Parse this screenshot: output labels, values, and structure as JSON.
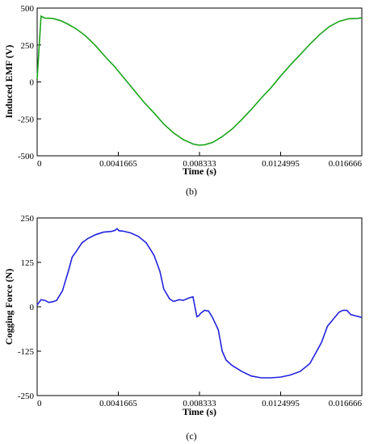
{
  "chart_data": [
    {
      "type": "line",
      "panel_label": "(b)",
      "xlabel": "Time (s)",
      "ylabel": "Induced EMF (V)",
      "xlim": [
        0,
        0.016666
      ],
      "ylim": [
        -500,
        500
      ],
      "xticks": [
        0,
        0.0041665,
        0.008333,
        0.0124995,
        0.016666
      ],
      "xtick_labels": [
        "0",
        "0.0041665",
        "0.008333",
        "0.0124995",
        "0.016666"
      ],
      "yticks": [
        500,
        250,
        0,
        -250,
        -500
      ],
      "ytick_labels": [
        "500",
        "250",
        "0",
        "-250",
        "-500"
      ],
      "grid": false,
      "color": "#1aa51a",
      "series": [
        {
          "x": [
            0,
            0.0002,
            0.0004,
            0.0008,
            0.0012,
            0.0016,
            0.002,
            0.0025,
            0.003,
            0.0035,
            0.004,
            0.0045,
            0.005,
            0.0055,
            0.006,
            0.0065,
            0.007,
            0.0075,
            0.008,
            0.0083,
            0.0086,
            0.009,
            0.0095,
            0.01,
            0.0105,
            0.011,
            0.0115,
            0.012,
            0.0125,
            0.013,
            0.0135,
            0.014,
            0.0145,
            0.015,
            0.0155,
            0.016,
            0.01645,
            0.016666
          ],
          "y": [
            20,
            445,
            432,
            430,
            415,
            390,
            360,
            310,
            245,
            170,
            100,
            20,
            -60,
            -140,
            -210,
            -285,
            -345,
            -390,
            -420,
            -428,
            -425,
            -410,
            -370,
            -320,
            -255,
            -185,
            -110,
            -40,
            40,
            115,
            185,
            255,
            320,
            375,
            410,
            428,
            430,
            434
          ]
        }
      ]
    },
    {
      "type": "line",
      "panel_label": "(c)",
      "xlabel": "Time (s)",
      "ylabel": "Cogging Force (N)",
      "xlim": [
        0,
        0.016666
      ],
      "ylim": [
        -250,
        250
      ],
      "xticks": [
        0,
        0.0041665,
        0.008333,
        0.0124995,
        0.016666
      ],
      "xtick_labels": [
        "0",
        "0.0041665",
        "0.008333",
        "0.0124995",
        "0.016666"
      ],
      "yticks": [
        250,
        125,
        0,
        -125,
        -250
      ],
      "ytick_labels": [
        "250",
        "125",
        "0",
        "-125",
        "-250"
      ],
      "grid": false,
      "color": "#2222dd",
      "series": [
        {
          "x": [
            0,
            0.0002,
            0.0004,
            0.0006,
            0.0008,
            0.001,
            0.0013,
            0.0016,
            0.0018,
            0.002,
            0.0023,
            0.0026,
            0.003,
            0.0034,
            0.0038,
            0.004,
            0.0041,
            0.0042,
            0.0044,
            0.0048,
            0.0052,
            0.0056,
            0.006,
            0.0063,
            0.0065,
            0.0068,
            0.007,
            0.0073,
            0.0075,
            0.0078,
            0.008,
            0.0082,
            0.0083,
            0.0084,
            0.0086,
            0.0088,
            0.009,
            0.0093,
            0.0095,
            0.0097,
            0.01,
            0.0105,
            0.011,
            0.0115,
            0.012,
            0.0125,
            0.013,
            0.0135,
            0.014,
            0.0143,
            0.0146,
            0.0149,
            0.0152,
            0.0155,
            0.0157,
            0.0159,
            0.0161,
            0.0163,
            0.016666
          ],
          "y": [
            5,
            20,
            18,
            12,
            14,
            18,
            45,
            100,
            140,
            155,
            180,
            192,
            203,
            210,
            212,
            215,
            220,
            214,
            213,
            208,
            198,
            180,
            145,
            100,
            50,
            22,
            15,
            20,
            18,
            25,
            28,
            -28,
            -25,
            -18,
            -10,
            -12,
            -30,
            -65,
            -125,
            -150,
            -165,
            -182,
            -195,
            -200,
            -200,
            -198,
            -192,
            -182,
            -160,
            -130,
            -100,
            -55,
            -35,
            -15,
            -10,
            -10,
            -22,
            -25,
            -30
          ]
        }
      ]
    }
  ]
}
